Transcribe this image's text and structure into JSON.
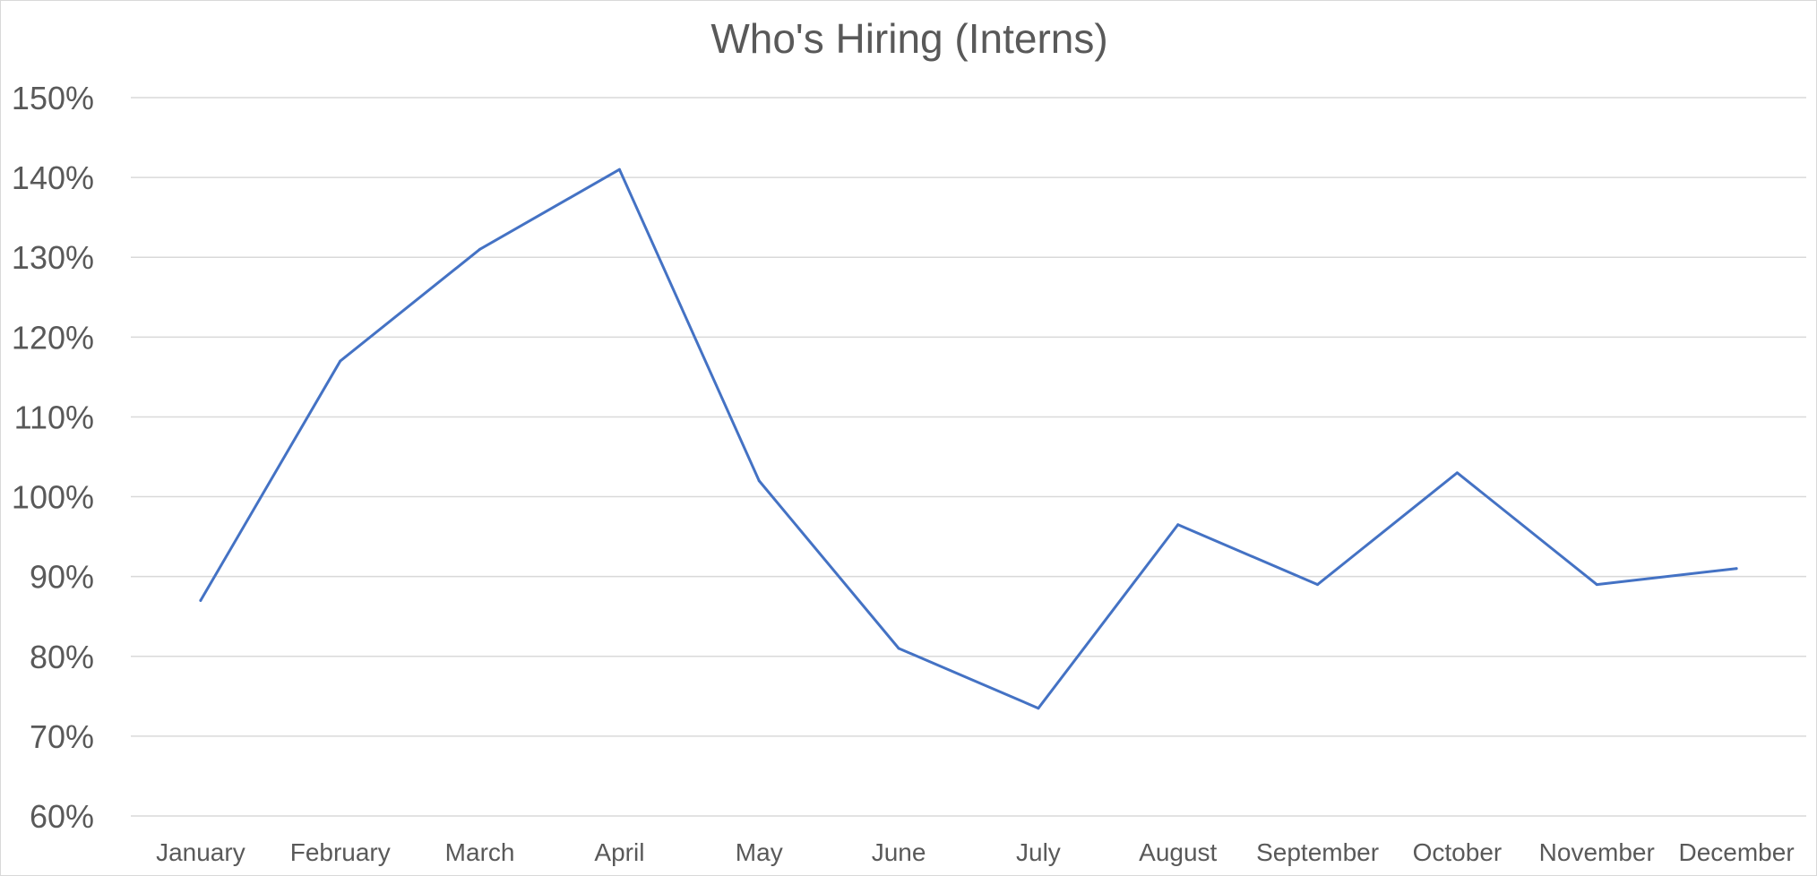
{
  "chart_data": {
    "type": "line",
    "title": "Who's Hiring (Interns)",
    "xlabel": "",
    "ylabel": "",
    "categories": [
      "January",
      "February",
      "March",
      "April",
      "May",
      "June",
      "July",
      "August",
      "September",
      "October",
      "November",
      "December"
    ],
    "series": [
      {
        "values": [
          87,
          117,
          131,
          141,
          102,
          81,
          73.5,
          96.5,
          89,
          103,
          89,
          91
        ],
        "color": "#4472c4"
      }
    ],
    "ylim": [
      60,
      150
    ],
    "yticks": [
      60,
      70,
      80,
      90,
      100,
      110,
      120,
      130,
      140,
      150
    ],
    "ytick_labels": [
      "60%",
      "70%",
      "80%",
      "90%",
      "100%",
      "110%",
      "120%",
      "130%",
      "140%",
      "150%"
    ],
    "grid": true,
    "legend": "none"
  }
}
